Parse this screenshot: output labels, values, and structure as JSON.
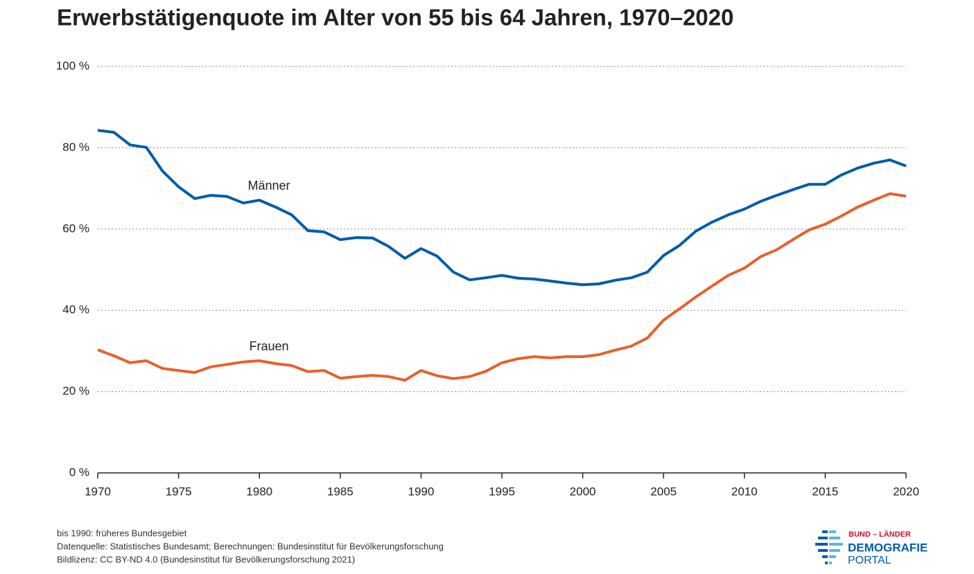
{
  "chart_data": {
    "type": "line",
    "title": "Erwerbstätigenquote im Alter von 55 bis 64 Jahren, 1970–2020",
    "x": [
      1970,
      1971,
      1972,
      1973,
      1974,
      1975,
      1976,
      1977,
      1978,
      1979,
      1980,
      1981,
      1982,
      1983,
      1984,
      1985,
      1986,
      1987,
      1988,
      1989,
      1990,
      1991,
      1992,
      1993,
      1994,
      1995,
      1996,
      1997,
      1998,
      1999,
      2000,
      2001,
      2002,
      2003,
      2004,
      2005,
      2006,
      2007,
      2008,
      2009,
      2010,
      2011,
      2012,
      2013,
      2014,
      2015,
      2016,
      2017,
      2018,
      2019,
      2020
    ],
    "series": [
      {
        "name": "Männer",
        "color": "#005ca9",
        "values": [
          84.3,
          83.8,
          80.7,
          80.1,
          74.3,
          70.4,
          67.5,
          68.3,
          68.0,
          66.4,
          67.1,
          65.4,
          63.5,
          59.6,
          59.3,
          57.4,
          57.9,
          57.8,
          55.7,
          52.8,
          55.2,
          53.3,
          49.4,
          47.5,
          48.0,
          48.6,
          47.9,
          47.7,
          47.2,
          46.7,
          46.3,
          46.5,
          47.4,
          48.0,
          49.4,
          53.5,
          56.0,
          59.5,
          61.7,
          63.5,
          64.9,
          66.8,
          68.3,
          69.7,
          71.0,
          71.0,
          73.3,
          75.0,
          76.2,
          77.0,
          75.5
        ]
      },
      {
        "name": "Frauen",
        "color": "#e8602c",
        "values": [
          30.3,
          28.8,
          27.1,
          27.6,
          25.7,
          25.2,
          24.7,
          26.1,
          26.7,
          27.3,
          27.6,
          26.9,
          26.4,
          24.9,
          25.2,
          23.3,
          23.7,
          24.0,
          23.7,
          22.8,
          25.2,
          23.9,
          23.2,
          23.7,
          25.0,
          27.1,
          28.1,
          28.6,
          28.3,
          28.6,
          28.6,
          29.1,
          30.2,
          31.2,
          33.2,
          37.6,
          40.4,
          43.3,
          46.0,
          48.6,
          50.4,
          53.2,
          54.9,
          57.4,
          59.8,
          61.2,
          63.2,
          65.4,
          67.1,
          68.7,
          68.1
        ]
      }
    ],
    "xlim": [
      1970,
      2020
    ],
    "xticks": [
      1970,
      1975,
      1980,
      1985,
      1990,
      1995,
      2000,
      2005,
      2010,
      2015,
      2020
    ],
    "ylim": [
      0,
      100
    ],
    "yticks": [
      {
        "value": 0,
        "label": "0 %"
      },
      {
        "value": 20,
        "label": "20 %"
      },
      {
        "value": 40,
        "label": "40 %"
      },
      {
        "value": 60,
        "label": "60 %"
      },
      {
        "value": 80,
        "label": "80 %"
      },
      {
        "value": 100,
        "label": "100 %"
      }
    ],
    "grid": true,
    "notes": [
      "bis 1990: früheres Bundesgebiet",
      "Datenquelle: Statistisches Bundesamt; Berechnungen: Bundesinstitut für Bevölkerungsforschung",
      "Bildlizenz: CC BY-ND 4.0 (Bundesinstitut für Bevölkerungsforschung 2021)"
    ],
    "logo": {
      "top": "BUND – LÄNDER",
      "middle": "DEMOGRAFIE",
      "bottom": "PORTAL"
    }
  }
}
